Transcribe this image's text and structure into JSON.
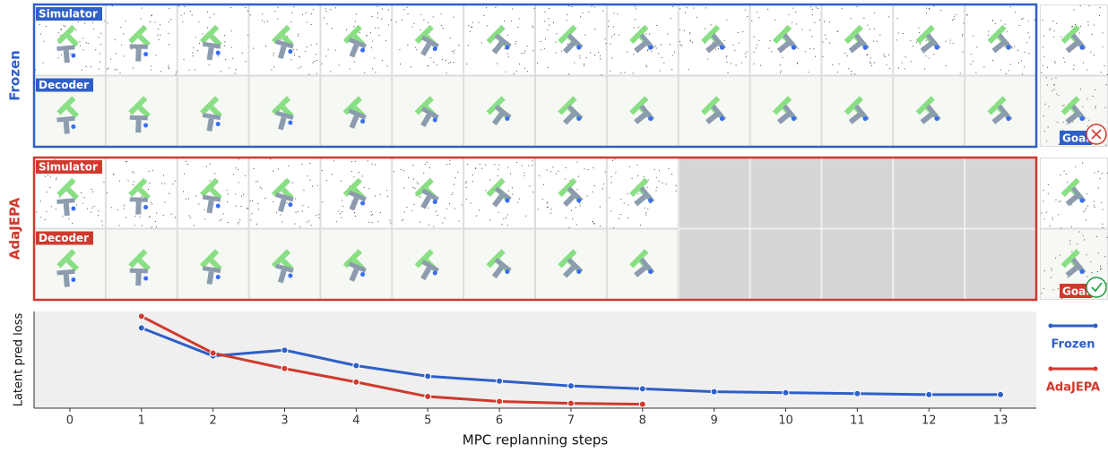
{
  "figure": {
    "panels": [
      {
        "name": "Frozen",
        "color": "#2f5fc8",
        "rows": [
          "Simulator",
          "Decoder"
        ],
        "goal": "Goal",
        "success": false
      },
      {
        "name": "AdaJEPA",
        "color": "#d03a2e",
        "rows": [
          "Simulator",
          "Decoder"
        ],
        "goal": "Goal",
        "success": true
      }
    ]
  },
  "chart_data": {
    "type": "line",
    "x_label": "MPC replanning steps",
    "y_label": "Latent pred loss",
    "x": [
      1,
      2,
      3,
      4,
      5,
      6,
      7,
      8,
      9,
      10,
      11,
      12,
      13
    ],
    "series": [
      {
        "name": "Frozen",
        "color": "#2f5fc8",
        "values": [
          0.83,
          0.54,
          0.6,
          0.44,
          0.33,
          0.28,
          0.23,
          0.2,
          0.17,
          0.16,
          0.15,
          0.14,
          0.14
        ]
      },
      {
        "name": "AdaJEPA",
        "color": "#d03a2e",
        "values": [
          0.95,
          0.57,
          0.41,
          0.27,
          0.12,
          0.07,
          0.05,
          0.04,
          null,
          null,
          null,
          null,
          null
        ]
      }
    ],
    "xlim": [
      -0.5,
      13.5
    ],
    "ylim": [
      0,
      1
    ],
    "xticks": [
      0,
      1,
      2,
      3,
      4,
      5,
      6,
      7,
      8,
      9,
      10,
      11,
      12,
      13
    ],
    "grid": false
  }
}
